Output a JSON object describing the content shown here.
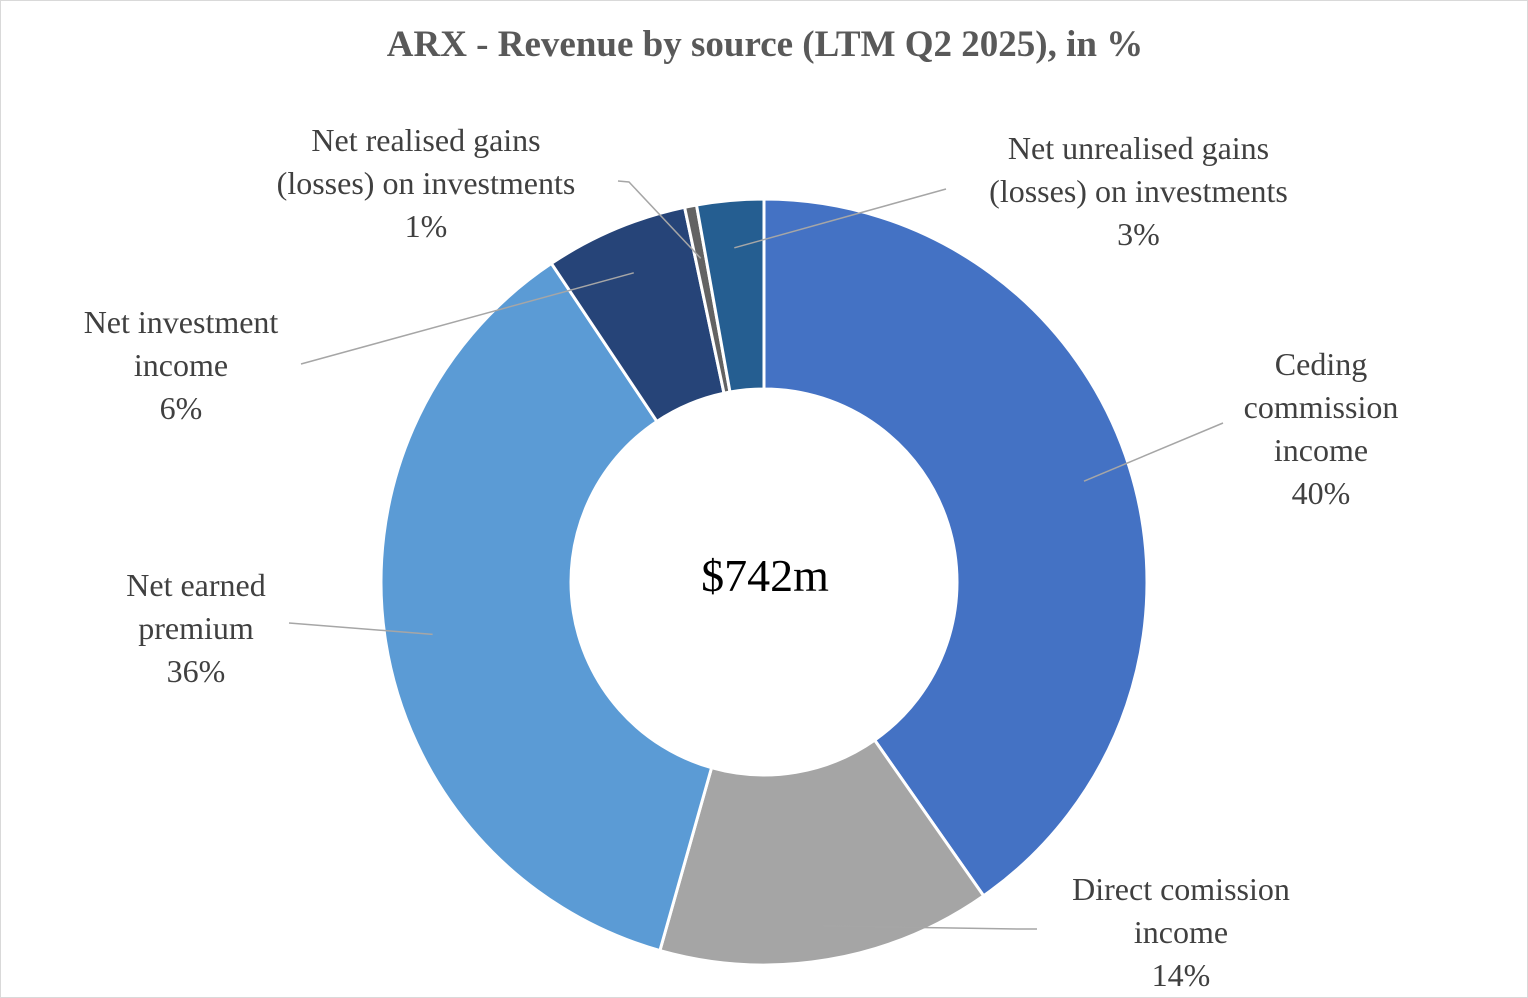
{
  "chart_data": {
    "type": "pie",
    "variant": "donut",
    "title": "ARX - Revenue by source (LTM Q2 2025), in %",
    "center_label": "$742m",
    "unit": "%",
    "legend": "none",
    "slices": [
      {
        "key": "ceding",
        "label_lines": [
          "Ceding",
          "commission",
          "income"
        ],
        "value": 40,
        "value_label": "40%",
        "color": "#4472C4"
      },
      {
        "key": "direct",
        "label_lines": [
          "Direct comission",
          "income"
        ],
        "value": 14,
        "value_label": "14%",
        "color": "#A5A5A5"
      },
      {
        "key": "earned",
        "label_lines": [
          "Net earned",
          "premium"
        ],
        "value": 36,
        "value_label": "36%",
        "color": "#5B9BD5"
      },
      {
        "key": "invest",
        "label_lines": [
          "Net investment",
          "income"
        ],
        "value": 6,
        "value_label": "6%",
        "color": "#264478"
      },
      {
        "key": "realised",
        "label_lines": [
          "Net realised gains",
          "(losses) on investments"
        ],
        "value": 0.5,
        "value_label": "1%",
        "color": "#636363"
      },
      {
        "key": "unrealised",
        "label_lines": [
          "Net unrealised gains",
          "(losses) on investments"
        ],
        "value": 2.8,
        "value_label": "3%",
        "color": "#255E91"
      }
    ]
  }
}
